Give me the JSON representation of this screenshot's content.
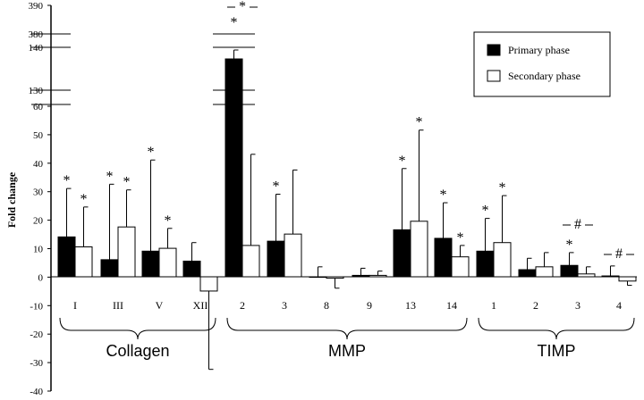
{
  "chart_data": {
    "type": "bar",
    "ylabel": "Fold change",
    "ylim": [
      -40,
      60
    ],
    "y_ticks": [
      "60",
      "50",
      "40",
      "30",
      "20",
      "10",
      "0",
      "-10",
      "-20",
      "-30",
      "-40"
    ],
    "axis_break": {
      "segments": [
        {
          "range": [
            130,
            140
          ],
          "ticks": [
            "140",
            "130"
          ]
        },
        {
          "range": [
            380,
            390
          ],
          "ticks": [
            "390",
            "380"
          ]
        }
      ]
    },
    "legend": {
      "position": "top-right"
    },
    "series": [
      {
        "name": "Primary phase",
        "color": "#000000",
        "values": [
          14,
          6,
          9,
          5.5,
          140,
          12.5,
          0,
          0.5,
          16.5,
          13.5,
          9,
          2.5,
          4,
          0.3
        ],
        "errors": [
          17,
          26.5,
          32,
          6.5,
          1.5,
          16.5,
          3.5,
          2.5,
          21.5,
          12.5,
          11.5,
          4,
          4.5,
          3.5
        ]
      },
      {
        "name": "Secondary phase",
        "color": "#ffffff",
        "values": [
          10.5,
          17.5,
          10,
          -5,
          11,
          15,
          -0.5,
          0.5,
          19.5,
          7,
          12,
          3.5,
          1,
          -1.5
        ],
        "errors": [
          14,
          13,
          7,
          27.5,
          32,
          22.5,
          3.5,
          1.5,
          32,
          4,
          16.5,
          5,
          2.5,
          1.5
        ]
      }
    ],
    "categories": [
      "I",
      "III",
      "V",
      "XII",
      "2",
      "3",
      "8",
      "9",
      "13",
      "14",
      "1",
      "2",
      "3",
      "4"
    ],
    "groups": [
      {
        "name": "Collagen",
        "start": 0,
        "end": 3
      },
      {
        "name": "MMP",
        "start": 4,
        "end": 9
      },
      {
        "name": "TIMP",
        "start": 10,
        "end": 13
      }
    ],
    "annotations": [
      {
        "cat": 0,
        "series": 0,
        "text": "*"
      },
      {
        "cat": 0,
        "series": 1,
        "text": "*"
      },
      {
        "cat": 1,
        "series": 0,
        "text": "*"
      },
      {
        "cat": 1,
        "series": 1,
        "text": "*"
      },
      {
        "cat": 2,
        "series": 0,
        "text": "*"
      },
      {
        "cat": 2,
        "series": 1,
        "text": "*"
      },
      {
        "cat": 4,
        "series": 0,
        "text": "*"
      },
      {
        "cat": 5,
        "series": 0,
        "text": "*"
      },
      {
        "cat": 8,
        "series": 0,
        "text": "*"
      },
      {
        "cat": 8,
        "series": 1,
        "text": "*"
      },
      {
        "cat": 9,
        "series": 0,
        "text": "*"
      },
      {
        "cat": 9,
        "series": 1,
        "text": "*"
      },
      {
        "cat": 10,
        "series": 0,
        "text": "*"
      },
      {
        "cat": 10,
        "series": 1,
        "text": "*"
      },
      {
        "cat": 12,
        "series": 0,
        "text": "*"
      }
    ],
    "comparisons": [
      {
        "cat": 4,
        "text": "*"
      },
      {
        "cat": 12,
        "text": "#"
      },
      {
        "cat": 13,
        "text": "#"
      }
    ]
  }
}
